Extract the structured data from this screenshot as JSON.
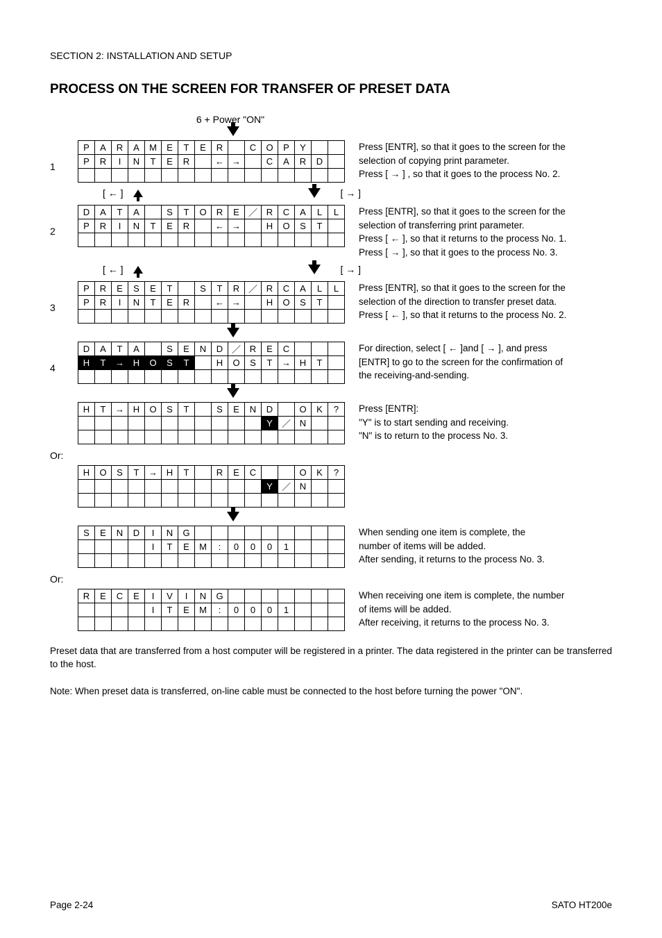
{
  "section_header": "SECTION 2: INSTALLATION AND SETUP",
  "title": "PROCESS ON THE SCREEN FOR TRANSFER OF PRESET DATA",
  "power_label": "6 + Power \"ON\"",
  "steps": {
    "s1": {
      "num": "1",
      "r1": [
        "P",
        "A",
        "R",
        "A",
        "M",
        "E",
        "T",
        "E",
        "R",
        "",
        "C",
        "O",
        "P",
        "Y",
        "",
        ""
      ],
      "r2": [
        "P",
        "R",
        "I",
        "N",
        "T",
        "E",
        "R",
        "",
        "←",
        "→",
        "",
        "C",
        "A",
        "R",
        "D",
        ""
      ],
      "r3": [
        "",
        "",
        "",
        "",
        "",
        "",
        "",
        "",
        "",
        "",
        "",
        "",
        "",
        "",
        "",
        ""
      ],
      "desc_l1": "Press [ENTR], so that it goes to the screen for the",
      "desc_l2": "selection of copying print parameter.",
      "desc_l3": "Press [ → ] , so that it goes to the process No. 2."
    },
    "nav1": {
      "left": "[ ← ]",
      "right": "[ → ]"
    },
    "s2": {
      "num": "2",
      "r1": [
        "D",
        "A",
        "T",
        "A",
        "",
        "S",
        "T",
        "O",
        "R",
        "E",
        "／",
        "R",
        "C",
        "A",
        "L",
        "L"
      ],
      "r2": [
        "P",
        "R",
        "I",
        "N",
        "T",
        "E",
        "R",
        "",
        "←",
        "→",
        "",
        "H",
        "O",
        "S",
        "T",
        ""
      ],
      "r3": [
        "",
        "",
        "",
        "",
        "",
        "",
        "",
        "",
        "",
        "",
        "",
        "",
        "",
        "",
        "",
        ""
      ],
      "desc_l1": "Press [ENTR], so that it goes to the screen for the",
      "desc_l2": "selection of transferring print parameter.",
      "desc_l3": "Press [ ← ], so that it returns to the process No. 1.",
      "desc_l4": "Press [ → ], so that it goes to the process No. 3."
    },
    "nav2": {
      "left": "[ ← ]",
      "right": "[ → ]"
    },
    "s3": {
      "num": "3",
      "r1": [
        "P",
        "R",
        "E",
        "S",
        "E",
        "T",
        "",
        "S",
        "T",
        "R",
        "／",
        "R",
        "C",
        "A",
        "L",
        "L"
      ],
      "r2": [
        "P",
        "R",
        "I",
        "N",
        "T",
        "E",
        "R",
        "",
        "←",
        "→",
        "",
        "H",
        "O",
        "S",
        "T",
        ""
      ],
      "r3": [
        "",
        "",
        "",
        "",
        "",
        "",
        "",
        "",
        "",
        "",
        "",
        "",
        "",
        "",
        "",
        ""
      ],
      "desc_l1": "Press [ENTR], so that it goes to the screen for the",
      "desc_l2": "selection of the direction to transfer preset data.",
      "desc_l3": "Press [ ← ], so that it returns to the process No. 2."
    },
    "s4": {
      "num": "4",
      "r1": [
        "D",
        "A",
        "T",
        "A",
        "",
        "S",
        "E",
        "N",
        "D",
        "／",
        "R",
        "E",
        "C",
        "",
        "",
        ""
      ],
      "r2": [
        "H",
        "T",
        "→",
        "H",
        "O",
        "S",
        "T",
        "",
        "H",
        "O",
        "S",
        "T",
        "→",
        "H",
        "T",
        ""
      ],
      "r2_inv": [
        0,
        1,
        2,
        3,
        4,
        5,
        6
      ],
      "r3": [
        "",
        "",
        "",
        "",
        "",
        "",
        "",
        "",
        "",
        "",
        "",
        "",
        "",
        "",
        "",
        ""
      ],
      "desc_l1": "For direction, select [ ← ]and [ → ], and press",
      "desc_l2": "[ENTR] to go to the screen for the confirmation of",
      "desc_l3": "the receiving-and-sending."
    },
    "s5a": {
      "r1": [
        "H",
        "T",
        "→",
        "H",
        "O",
        "S",
        "T",
        "",
        "S",
        "E",
        "N",
        "D",
        "",
        "O",
        "K",
        "?"
      ],
      "r2": [
        "",
        "",
        "",
        "",
        "",
        "",
        "",
        "",
        "",
        "",
        "",
        "Y",
        "／",
        "N",
        "",
        ""
      ],
      "r2_inv": [
        11
      ],
      "r3": [
        "",
        "",
        "",
        "",
        "",
        "",
        "",
        "",
        "",
        "",
        "",
        "",
        "",
        "",
        "",
        ""
      ],
      "desc_l1": "Press [ENTR]:",
      "desc_l2": "\"Y\" is to start sending and receiving.",
      "desc_l3": "\"N\" is to return to the process No. 3."
    },
    "or": "Or:",
    "s5b": {
      "r1": [
        "H",
        "O",
        "S",
        "T",
        "→",
        "H",
        "T",
        "",
        "R",
        "E",
        "C",
        "",
        "",
        "O",
        "K",
        "?"
      ],
      "r2": [
        "",
        "",
        "",
        "",
        "",
        "",
        "",
        "",
        "",
        "",
        "",
        "Y",
        "／",
        "N",
        "",
        ""
      ],
      "r2_inv": [
        11
      ],
      "r3": [
        "",
        "",
        "",
        "",
        "",
        "",
        "",
        "",
        "",
        "",
        "",
        "",
        "",
        "",
        "",
        ""
      ]
    },
    "s6a": {
      "r1": [
        "S",
        "E",
        "N",
        "D",
        "I",
        "N",
        "G",
        "",
        "",
        "",
        "",
        "",
        "",
        "",
        "",
        ""
      ],
      "r2": [
        "",
        "",
        "",
        "",
        "I",
        "T",
        "E",
        "M",
        ":",
        "0",
        "0",
        "0",
        "1",
        "",
        "",
        ""
      ],
      "r3": [
        "",
        "",
        "",
        "",
        "",
        "",
        "",
        "",
        "",
        "",
        "",
        "",
        "",
        "",
        "",
        ""
      ],
      "desc_l1": "When sending one item is complete, the",
      "desc_l2": "number of items will be added.",
      "desc_l3": "After sending, it returns to the process No. 3."
    },
    "s6b": {
      "r1": [
        "R",
        "E",
        "C",
        "E",
        "I",
        "V",
        "I",
        "N",
        "G",
        "",
        "",
        "",
        "",
        "",
        "",
        ""
      ],
      "r2": [
        "",
        "",
        "",
        "",
        "I",
        "T",
        "E",
        "M",
        ":",
        "0",
        "0",
        "0",
        "1",
        "",
        "",
        ""
      ],
      "r3": [
        "",
        "",
        "",
        "",
        "",
        "",
        "",
        "",
        "",
        "",
        "",
        "",
        "",
        "",
        "",
        ""
      ],
      "desc_l1": "When receiving one item is complete, the number",
      "desc_l2": "of items will be added.",
      "desc_l3": "After receiving, it returns to the process No. 3."
    }
  },
  "para1": "Preset data that are transferred from a host computer will be registered in a printer. The data registered in the printer can be transferred to the host.",
  "para2": "Note: When preset data is transferred, on-line cable must be connected to the host before turning the power \"ON\".",
  "footer_left": "Page 2-24",
  "footer_right": "SATO HT200e"
}
